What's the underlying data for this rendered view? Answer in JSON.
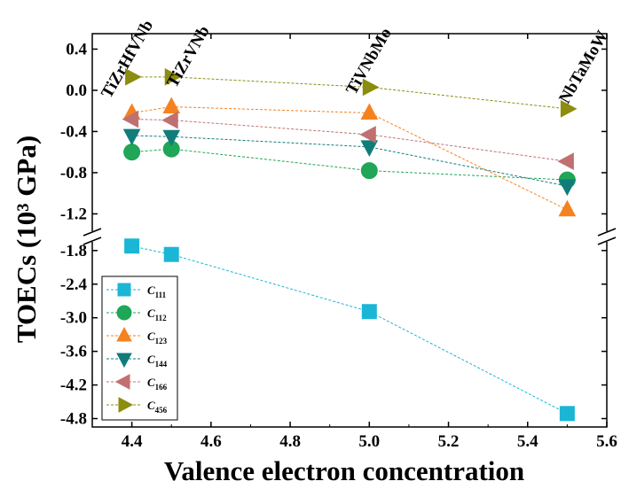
{
  "chart_data": {
    "type": "line",
    "xlabel": "Valence electron concentration",
    "ylabel": "TOECs (10³ GPa)",
    "x_ticks": [
      "4.4",
      "4.6",
      "4.8",
      "5.0",
      "5.2",
      "5.4",
      "5.6"
    ],
    "x_range": [
      4.3,
      5.6
    ],
    "upper_panel": {
      "y_range": [
        -1.42,
        0.55
      ],
      "y_ticks": [
        "0.4",
        "0.0",
        "-0.4",
        "-0.8",
        "-1.2"
      ],
      "series_indices": [
        1,
        2,
        3,
        4,
        5
      ]
    },
    "lower_panel": {
      "y_range": [
        -4.95,
        -1.55
      ],
      "y_ticks": [
        "-1.8",
        "-2.4",
        "-3.0",
        "-3.6",
        "-4.2",
        "-4.8"
      ],
      "series_indices": [
        0
      ]
    },
    "x": [
      4.4,
      4.5,
      5.0,
      5.5
    ],
    "alloys": [
      "TiZrHfVNb",
      "TiZrVNb",
      "TiVNbMo",
      "NbTaMoW"
    ],
    "series": [
      {
        "name": "C",
        "sub": "111",
        "marker": "square",
        "color": "#1bb6d6",
        "values": [
          -1.72,
          -1.87,
          -2.89,
          -4.71
        ]
      },
      {
        "name": "C",
        "sub": "112",
        "marker": "circle",
        "color": "#1fa657",
        "values": [
          -0.6,
          -0.57,
          -0.78,
          -0.87
        ]
      },
      {
        "name": "C",
        "sub": "123",
        "marker": "triangle-up",
        "color": "#f58220",
        "values": [
          -0.22,
          -0.16,
          -0.22,
          -1.16
        ]
      },
      {
        "name": "C",
        "sub": "144",
        "marker": "triangle-down",
        "color": "#117d7a",
        "values": [
          -0.44,
          -0.45,
          -0.55,
          -0.93
        ]
      },
      {
        "name": "C",
        "sub": "166",
        "marker": "triangle-left",
        "color": "#c07070",
        "values": [
          -0.28,
          -0.29,
          -0.43,
          -0.69
        ]
      },
      {
        "name": "C",
        "sub": "456",
        "marker": "triangle-right",
        "color": "#8c8c0e",
        "values": [
          0.13,
          0.13,
          0.03,
          -0.18
        ]
      }
    ]
  }
}
